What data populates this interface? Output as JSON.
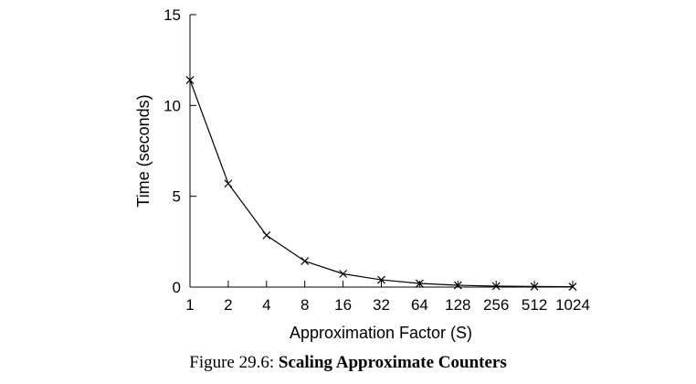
{
  "chart_data": {
    "type": "line",
    "title": "",
    "xlabel": "Approximation Factor (S)",
    "ylabel": "Time (seconds)",
    "x_scale": "log2",
    "x": [
      1,
      2,
      4,
      8,
      16,
      32,
      64,
      128,
      256,
      512,
      1024
    ],
    "x_tick_labels": [
      "1",
      "2",
      "4",
      "8",
      "16",
      "32",
      "64",
      "128",
      "256",
      "512",
      "1024"
    ],
    "y_ticks": [
      0,
      5,
      10,
      15
    ],
    "ylim": [
      0,
      15
    ],
    "series": [
      {
        "marker": "x",
        "values": [
          11.4,
          5.7,
          2.85,
          1.43,
          0.73,
          0.4,
          0.2,
          0.1,
          0.05,
          0.03,
          0.02
        ]
      }
    ],
    "grid": false,
    "legend": "none"
  },
  "caption": {
    "prefix": "Figure 29.6: ",
    "title": "Scaling Approximate Counters"
  }
}
